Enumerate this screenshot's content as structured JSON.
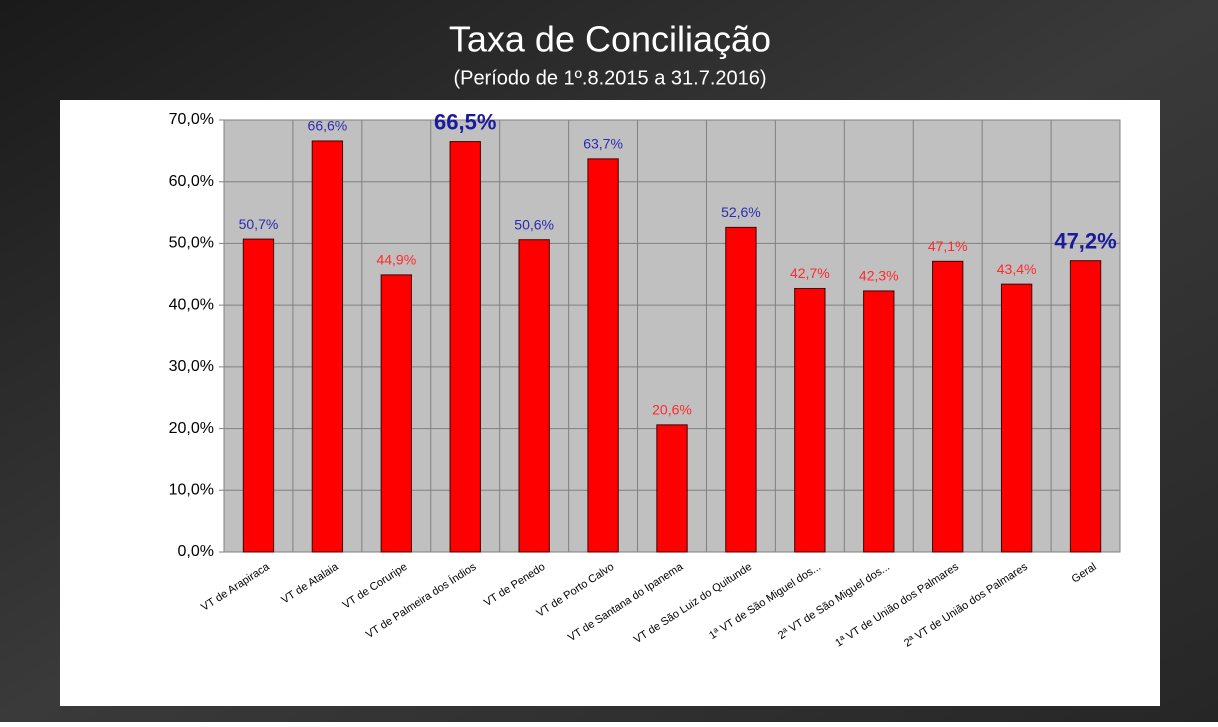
{
  "chart_data": {
    "type": "bar",
    "title": "Taxa de Conciliação",
    "subtitle": "(Período de 1º.8.2015  a  31.7.2016)",
    "categories": [
      "VT de Arapiraca",
      "VT de Atalaia",
      "VT de Coruripe",
      "VT de Palmeira dos Índios",
      "VT de Penedo",
      "VT de Porto Calvo",
      "VT de Santana do Ipanema",
      "VT de São Luiz do Quitunde",
      "1ª VT de São Miguel dos...",
      "2ª VT de São Miguel dos...",
      "1ª VT de União dos Palmares",
      "2ª VT de União dos Palmares",
      "Geral"
    ],
    "values": [
      50.7,
      66.6,
      44.9,
      66.5,
      50.6,
      63.7,
      20.6,
      52.6,
      42.7,
      42.3,
      47.1,
      43.4,
      47.2
    ],
    "value_labels": [
      "50,7%",
      "66,6%",
      "44,9%",
      "66,5%",
      "50,6%",
      "63,7%",
      "20,6%",
      "52,6%",
      "42,7%",
      "42,3%",
      "47,1%",
      "43,4%",
      "47,2%"
    ],
    "value_label_colors": [
      "#2b2bb0",
      "#2b2bb0",
      "#ff2a2a",
      "#1a1a9c",
      "#2b2bb0",
      "#2b2bb0",
      "#ff2a2a",
      "#2b2bb0",
      "#ff2a2a",
      "#ff2a2a",
      "#ff2a2a",
      "#ff2a2a",
      "#1a1a9c"
    ],
    "value_label_bold": [
      false,
      false,
      false,
      true,
      false,
      false,
      false,
      false,
      false,
      false,
      false,
      false,
      true
    ],
    "color": "#ff0000",
    "ylim": [
      0,
      70
    ],
    "yticks": [
      {
        "value": 0,
        "label": "0,0%"
      },
      {
        "value": 10,
        "label": "10,0%"
      },
      {
        "value": 20,
        "label": "20,0%"
      },
      {
        "value": 30,
        "label": "30,0%"
      },
      {
        "value": 40,
        "label": "40,0%"
      },
      {
        "value": 50,
        "label": "50,0%"
      },
      {
        "value": 60,
        "label": "60,0%"
      },
      {
        "value": 70,
        "label": "70,0%"
      }
    ],
    "grid": true
  }
}
